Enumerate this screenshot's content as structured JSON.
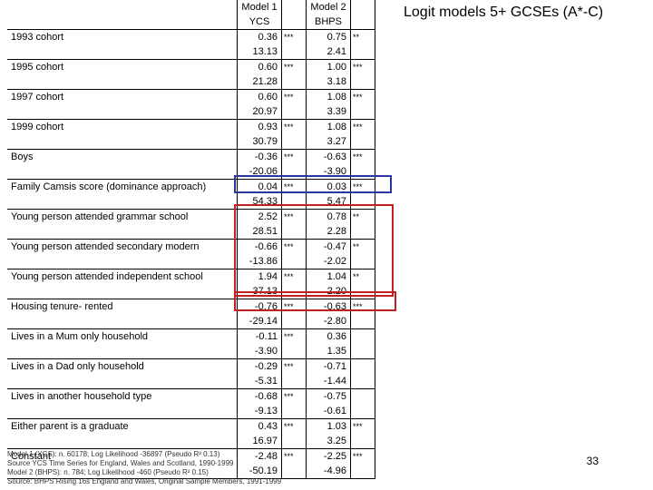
{
  "title": "Logit models 5+ GCSEs (A*-C)",
  "page_number": "33",
  "headers": {
    "col1": "Model 1\nYCS",
    "col2": "Model 2\nBHPS"
  },
  "rows": [
    {
      "label": "1993 cohort",
      "v1": "0.36",
      "s1": "***",
      "v2": "0.75",
      "s2": "**",
      "t1": "13.13",
      "t2": "2.41"
    },
    {
      "label": "1995 cohort",
      "v1": "0.60",
      "s1": "***",
      "v2": "1.00",
      "s2": "***",
      "t1": "21.28",
      "t2": "3.18"
    },
    {
      "label": "1997 cohort",
      "v1": "0.60",
      "s1": "***",
      "v2": "1.08",
      "s2": "***",
      "t1": "20.97",
      "t2": "3.39"
    },
    {
      "label": "1999 cohort",
      "v1": "0.93",
      "s1": "***",
      "v2": "1.08",
      "s2": "***",
      "t1": "30.79",
      "t2": "3.27"
    },
    {
      "label": "Boys",
      "v1": "-0.36",
      "s1": "***",
      "v2": "-0.63",
      "s2": "***",
      "t1": "-20.06",
      "t2": "-3.90"
    },
    {
      "label": "Family Camsis score (dominance approach)",
      "v1": "0.04",
      "s1": "***",
      "v2": "0.03",
      "s2": "***",
      "t1": "54.33",
      "t2": "5.47"
    },
    {
      "label": "Young person attended grammar school",
      "v1": "2.52",
      "s1": "***",
      "v2": "0.78",
      "s2": "**",
      "t1": "28.51",
      "t2": "2.28"
    },
    {
      "label": "Young person attended secondary modern",
      "v1": "-0.66",
      "s1": "***",
      "v2": "-0.47",
      "s2": "**",
      "t1": "-13.86",
      "t2": "-2.02"
    },
    {
      "label": "Young person attended independent school",
      "v1": "1.94",
      "s1": "***",
      "v2": "1.04",
      "s2": "**",
      "t1": "37.13",
      "t2": "2.20"
    },
    {
      "label": "Housing tenure- rented",
      "v1": "-0.76",
      "s1": "***",
      "v2": "-0.63",
      "s2": "***",
      "t1": "-29.14",
      "t2": "-2.80"
    },
    {
      "label": "Lives in a Mum only household",
      "v1": "-0.11",
      "s1": "***",
      "v2": "0.36",
      "s2": "",
      "t1": "-3.90",
      "t2": "1.35"
    },
    {
      "label": "Lives in a Dad only household",
      "v1": "-0.29",
      "s1": "***",
      "v2": "-0.71",
      "s2": "",
      "t1": "-5.31",
      "t2": "-1.44"
    },
    {
      "label": "Lives in another household type",
      "v1": "-0.68",
      "s1": "***",
      "v2": "-0.75",
      "s2": "",
      "t1": "-9.13",
      "t2": "-0.61"
    },
    {
      "label": "Either parent is a graduate",
      "v1": "0.43",
      "s1": "***",
      "v2": "1.03",
      "s2": "***",
      "t1": "16.97",
      "t2": "3.25"
    },
    {
      "label": "Constant",
      "v1": "-2.48",
      "s1": "***",
      "v2": "-2.25",
      "s2": "***",
      "t1": "-50.19",
      "t2": "-4.96"
    }
  ],
  "footnotes": [
    "Model 1 (YCS): n. 60178; Log Likelihood -36897 (Pseudo R² 0.13)",
    "Source YCS Time Series for England, Wales and Scotland, 1990-1999",
    "Model 2 (BHPS): n. 784; Log Likelihood -460 (Pseudo R² 0.15)",
    "Source: BHPS Rising 16s England and Wales, Original Sample Members, 1991-1999"
  ],
  "colors": {
    "blue_highlight": "#2838a0",
    "red_highlight": "#c02020"
  }
}
